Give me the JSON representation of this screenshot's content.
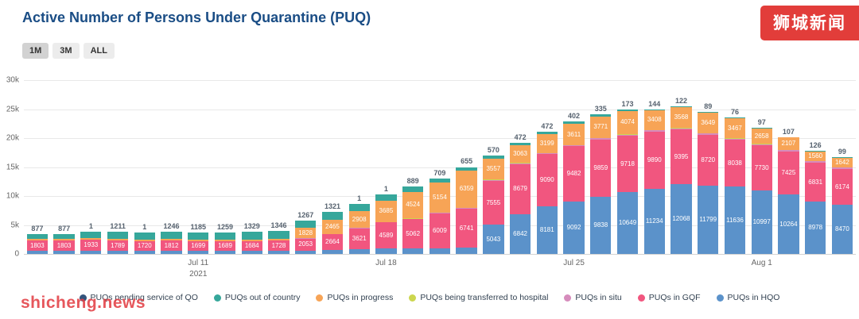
{
  "title": "Active Number of Persons Under Quarantine (PUQ)",
  "range_selector": {
    "buttons": [
      "1M",
      "3M",
      "ALL"
    ],
    "selected": "1M"
  },
  "watermarks": {
    "top_right": "狮城新闻",
    "bottom_left": "shicheng.news"
  },
  "chart_data": {
    "type": "bar",
    "stacked": true,
    "title": "Active Number of Persons Under Quarantine (PUQ)",
    "ylim": [
      0,
      30000
    ],
    "y_tick_values": [
      0,
      5000,
      10000,
      15000,
      20000,
      25000,
      30000
    ],
    "y_tick_labels": [
      "0",
      "5k",
      "10k",
      "15k",
      "20k",
      "25k",
      "30k"
    ],
    "x": [
      "Jul 5",
      "Jul 6",
      "Jul 7",
      "Jul 8",
      "Jul 9",
      "Jul 10",
      "Jul 11",
      "Jul 12",
      "Jul 13",
      "Jul 14",
      "Jul 15",
      "Jul 16",
      "Jul 17",
      "Jul 18",
      "Jul 19",
      "Jul 20",
      "Jul 21",
      "Jul 22",
      "Jul 23",
      "Jul 24",
      "Jul 25",
      "Jul 26",
      "Jul 27",
      "Jul 28",
      "Jul 29",
      "Jul 30",
      "Jul 31",
      "Aug 1",
      "Aug 2",
      "Aug 3",
      "Aug 4"
    ],
    "x_ticks": [
      {
        "index": 6,
        "label": "Jul 11",
        "sub": "2021"
      },
      {
        "index": 13,
        "label": "Jul 18"
      },
      {
        "index": 20,
        "label": "Jul 25"
      },
      {
        "index": 27,
        "label": "Aug 1"
      }
    ],
    "stack_order": [
      "hqo",
      "gqf",
      "situ",
      "hosp",
      "progress",
      "country"
    ],
    "legend_order": [
      "pending",
      "country",
      "progress",
      "hosp",
      "situ",
      "gqf",
      "hqo"
    ],
    "series_meta": {
      "pending": {
        "label": "PUQs pending service of QO",
        "color": "#33547c"
      },
      "country": {
        "label": "PUQs out of country",
        "color": "#36a79b"
      },
      "progress": {
        "label": "PUQs in progress",
        "color": "#f7a456"
      },
      "hosp": {
        "label": "PUQs being transferred to hospital",
        "color": "#ccd64f"
      },
      "situ": {
        "label": "PUQs in situ",
        "color": "#d68cbc"
      },
      "gqf": {
        "label": "PUQs in GQF",
        "color": "#f1567f"
      },
      "hqo": {
        "label": "PUQs in HQO",
        "color": "#5b92ca"
      }
    },
    "values": {
      "hqo": [
        500,
        500,
        500,
        500,
        500,
        500,
        500,
        500,
        500,
        550,
        600,
        700,
        800,
        900,
        950,
        1000,
        1050,
        5043,
        6842,
        8181,
        9092,
        9838,
        10649,
        11234,
        12068,
        11799,
        11636,
        10997,
        10264,
        8978,
        8470
      ],
      "gqf": [
        1803,
        1803,
        1933,
        1789,
        1720,
        1812,
        1699,
        1689,
        1684,
        1728,
        2053,
        2664,
        3621,
        4589,
        5062,
        6009,
        6741,
        7555,
        8679,
        9090,
        9482,
        9859,
        9718,
        9890,
        9395,
        8720,
        8038,
        7730,
        7425,
        6831,
        6174
      ],
      "situ": [
        20,
        20,
        20,
        20,
        20,
        20,
        20,
        20,
        20,
        20,
        30,
        30,
        40,
        60,
        80,
        100,
        120,
        150,
        150,
        150,
        200,
        250,
        250,
        250,
        250,
        250,
        250,
        250,
        250,
        250,
        250
      ],
      "hosp": [
        10,
        10,
        1,
        10,
        1,
        10,
        10,
        10,
        10,
        10,
        20,
        20,
        1,
        1,
        80,
        80,
        80,
        80,
        40,
        40,
        40,
        40,
        40,
        40,
        40,
        40,
        40,
        40,
        40,
        40,
        40
      ],
      "progress": [
        270,
        270,
        270,
        270,
        270,
        270,
        270,
        270,
        270,
        280,
        1828,
        2465,
        2908,
        3685,
        4524,
        5154,
        6359,
        3557,
        3063,
        3199,
        3611,
        3771,
        4074,
        3408,
        3568,
        3649,
        3467,
        2658,
        2107,
        1560,
        1642
      ],
      "country": [
        877,
        877,
        1100,
        1211,
        1220,
        1246,
        1185,
        1259,
        1329,
        1346,
        1267,
        1321,
        1300,
        1000,
        889,
        709,
        655,
        570,
        472,
        472,
        402,
        335,
        173,
        144,
        122,
        89,
        76,
        97,
        107,
        126,
        99
      ],
      "pending": [
        0,
        0,
        0,
        0,
        0,
        0,
        0,
        0,
        0,
        0,
        0,
        0,
        0,
        0,
        0,
        0,
        0,
        0,
        0,
        0,
        0,
        0,
        0,
        0,
        0,
        0,
        0,
        0,
        0,
        0,
        0
      ]
    },
    "top_labels": [
      "877",
      "877",
      "1",
      "1211",
      "1",
      "1246",
      "1185",
      "1259",
      "1329",
      "1346",
      "1267",
      "1321",
      "1",
      "1",
      "889",
      "709",
      "655",
      "570",
      "472",
      "472",
      "402",
      "335",
      "173",
      "144",
      "122",
      "89",
      "76",
      "97",
      "107",
      "126",
      "99"
    ],
    "labeled_series": [
      "hqo",
      "gqf",
      "progress"
    ],
    "label_min_value": 1500,
    "estimate_note": "Unlabeled small segments (situ, hosp, early hqo/progress, and country values on bars topped with '1') are visual estimates read from bar heights."
  }
}
